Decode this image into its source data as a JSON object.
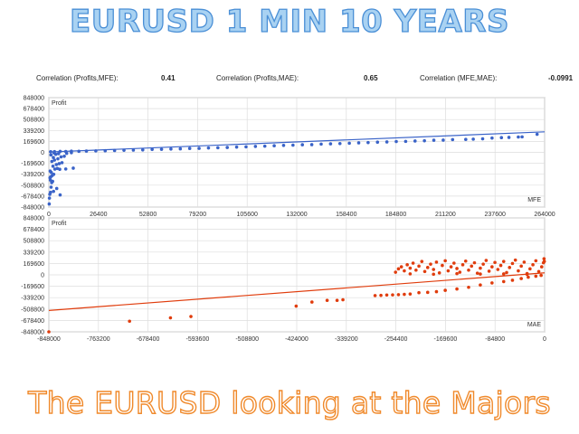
{
  "header": {
    "title": "EURUSD 1 MIN 10 YEARS"
  },
  "footer": {
    "caption": "The EURUSD looking at the Majors"
  },
  "correlations": [
    {
      "label": "Correlation (Profits,MFE):",
      "value": "0.41"
    },
    {
      "label": "Correlation (Profits,MAE):",
      "value": "0.65"
    },
    {
      "label": "Correlation (MFE,MAE):",
      "value": "-0.0991"
    }
  ],
  "colors": {
    "mfe_points": "#3a63c8",
    "mae_points": "#e03c0c",
    "grid": "#dddddd"
  },
  "chart_data": [
    {
      "type": "scatter",
      "title": "",
      "ylabel": "Profit",
      "xlabel": "MFE",
      "xlim": [
        0,
        264000
      ],
      "ylim": [
        -848000,
        848000
      ],
      "xticks": [
        "0",
        "26400",
        "52800",
        "79200",
        "105600",
        "132000",
        "158400",
        "184800",
        "211200",
        "237600",
        "264000"
      ],
      "yticks": [
        "848000",
        "678400",
        "508800",
        "339200",
        "169600",
        "0",
        "-169600",
        "-339200",
        "-508800",
        "-678400",
        "-848000"
      ],
      "grid": true,
      "trendline": {
        "x": [
          0,
          264000
        ],
        "y": [
          5000,
          318000
        ]
      },
      "points": [
        [
          200,
          -800000
        ],
        [
          300,
          -710000
        ],
        [
          500,
          -650000
        ],
        [
          900,
          -620000
        ],
        [
          2500,
          -605000
        ],
        [
          4200,
          -560000
        ],
        [
          6000,
          -660000
        ],
        [
          1200,
          -540000
        ],
        [
          800,
          -430000
        ],
        [
          1500,
          -470000
        ],
        [
          2000,
          -450000
        ],
        [
          600,
          -395000
        ],
        [
          1000,
          -380000
        ],
        [
          1800,
          -360000
        ],
        [
          2600,
          -340000
        ],
        [
          1300,
          -310000
        ],
        [
          700,
          -290000
        ],
        [
          3200,
          -260000
        ],
        [
          4500,
          -250000
        ],
        [
          5800,
          -262000
        ],
        [
          9000,
          -258000
        ],
        [
          13000,
          -245000
        ],
        [
          2200,
          -215000
        ],
        [
          4000,
          -190000
        ],
        [
          5500,
          -175000
        ],
        [
          7000,
          -160000
        ],
        [
          1600,
          -140000
        ],
        [
          3000,
          -120000
        ],
        [
          4800,
          -100000
        ],
        [
          2400,
          -80000
        ],
        [
          6500,
          -70000
        ],
        [
          8200,
          -60000
        ],
        [
          1100,
          -40000
        ],
        [
          3700,
          -30000
        ],
        [
          5200,
          -20000
        ],
        [
          9500,
          -15000
        ],
        [
          2800,
          -10000
        ],
        [
          12000,
          -5000
        ],
        [
          1000,
          10000
        ],
        [
          3000,
          12000
        ],
        [
          6000,
          15000
        ],
        [
          9000,
          14000
        ],
        [
          12000,
          18000
        ],
        [
          16000,
          16000
        ],
        [
          20000,
          20000
        ],
        [
          25000,
          22000
        ],
        [
          30000,
          25000
        ],
        [
          35000,
          28000
        ],
        [
          40000,
          33000
        ],
        [
          45000,
          35000
        ],
        [
          50000,
          38000
        ],
        [
          55000,
          45000
        ],
        [
          60000,
          47000
        ],
        [
          65000,
          52000
        ],
        [
          70000,
          55000
        ],
        [
          75000,
          60000
        ],
        [
          80000,
          62000
        ],
        [
          85000,
          68000
        ],
        [
          90000,
          72000
        ],
        [
          95000,
          76000
        ],
        [
          100000,
          82000
        ],
        [
          105000,
          86000
        ],
        [
          110000,
          92000
        ],
        [
          115000,
          96000
        ],
        [
          120000,
          102000
        ],
        [
          125000,
          108000
        ],
        [
          130000,
          112000
        ],
        [
          135000,
          118000
        ],
        [
          140000,
          120000
        ],
        [
          145000,
          128000
        ],
        [
          150000,
          132000
        ],
        [
          155000,
          136000
        ],
        [
          160000,
          142000
        ],
        [
          165000,
          148000
        ],
        [
          170000,
          152000
        ],
        [
          175000,
          158000
        ],
        [
          180000,
          162000
        ],
        [
          185000,
          168000
        ],
        [
          190000,
          170000
        ],
        [
          195000,
          176000
        ],
        [
          200000,
          180000
        ],
        [
          205000,
          188000
        ],
        [
          210000,
          190000
        ],
        [
          215000,
          198000
        ],
        [
          222000,
          200000
        ],
        [
          226000,
          205000
        ],
        [
          231000,
          210000
        ],
        [
          236000,
          222000
        ],
        [
          241000,
          228000
        ],
        [
          245000,
          232000
        ],
        [
          250000,
          238000
        ],
        [
          252000,
          240000
        ],
        [
          260000,
          280000
        ]
      ]
    },
    {
      "type": "scatter",
      "title": "",
      "ylabel": "Profit",
      "xlabel": "MAE",
      "xlim": [
        -848000,
        0
      ],
      "ylim": [
        -848000,
        848000
      ],
      "xticks": [
        "-848000",
        "-763200",
        "-678400",
        "-593600",
        "-508800",
        "-424000",
        "-339200",
        "-254400",
        "-169600",
        "-84800",
        "0"
      ],
      "yticks": [
        "848000",
        "678400",
        "508800",
        "339200",
        "169600",
        "0",
        "-169600",
        "-339200",
        "-508800",
        "-678400",
        "-848000"
      ],
      "grid": true,
      "trendline": {
        "x": [
          -848000,
          0
        ],
        "y": [
          -530000,
          30000
        ]
      },
      "points": [
        [
          -848000,
          -848000
        ],
        [
          -710000,
          -690000
        ],
        [
          -640000,
          -640000
        ],
        [
          -605000,
          -620000
        ],
        [
          -425000,
          -465000
        ],
        [
          -398000,
          -405000
        ],
        [
          -372000,
          -380000
        ],
        [
          -355000,
          -380000
        ],
        [
          -345000,
          -370000
        ],
        [
          -290000,
          -308000
        ],
        [
          -280000,
          -305000
        ],
        [
          -270000,
          -300000
        ],
        [
          -260000,
          -298000
        ],
        [
          -250000,
          -295000
        ],
        [
          -240000,
          -290000
        ],
        [
          -230000,
          -285000
        ],
        [
          -215000,
          -265000
        ],
        [
          -200000,
          -260000
        ],
        [
          -185000,
          -250000
        ],
        [
          -170000,
          -230000
        ],
        [
          -150000,
          -210000
        ],
        [
          -130000,
          -185000
        ],
        [
          -110000,
          -150000
        ],
        [
          -90000,
          -120000
        ],
        [
          -70000,
          -100000
        ],
        [
          -55000,
          -80000
        ],
        [
          -40000,
          -55000
        ],
        [
          -28000,
          -35000
        ],
        [
          -15000,
          -20000
        ],
        [
          -6000,
          -8000
        ],
        [
          -255000,
          40000
        ],
        [
          -250000,
          90000
        ],
        [
          -245000,
          120000
        ],
        [
          -240000,
          60000
        ],
        [
          -235000,
          150000
        ],
        [
          -230000,
          100000
        ],
        [
          -225000,
          175000
        ],
        [
          -220000,
          70000
        ],
        [
          -215000,
          130000
        ],
        [
          -210000,
          200000
        ],
        [
          -205000,
          50000
        ],
        [
          -200000,
          110000
        ],
        [
          -195000,
          160000
        ],
        [
          -190000,
          80000
        ],
        [
          -185000,
          190000
        ],
        [
          -180000,
          30000
        ],
        [
          -175000,
          140000
        ],
        [
          -170000,
          210000
        ],
        [
          -165000,
          60000
        ],
        [
          -160000,
          120000
        ],
        [
          -155000,
          175000
        ],
        [
          -150000,
          95000
        ],
        [
          -145000,
          40000
        ],
        [
          -140000,
          150000
        ],
        [
          -135000,
          205000
        ],
        [
          -130000,
          70000
        ],
        [
          -125000,
          130000
        ],
        [
          -120000,
          180000
        ],
        [
          -115000,
          25000
        ],
        [
          -110000,
          100000
        ],
        [
          -105000,
          160000
        ],
        [
          -100000,
          215000
        ],
        [
          -95000,
          55000
        ],
        [
          -90000,
          120000
        ],
        [
          -85000,
          185000
        ],
        [
          -80000,
          80000
        ],
        [
          -75000,
          140000
        ],
        [
          -70000,
          200000
        ],
        [
          -65000,
          35000
        ],
        [
          -60000,
          110000
        ],
        [
          -55000,
          170000
        ],
        [
          -50000,
          220000
        ],
        [
          -45000,
          60000
        ],
        [
          -40000,
          130000
        ],
        [
          -35000,
          190000
        ],
        [
          -30000,
          20000
        ],
        [
          -25000,
          90000
        ],
        [
          -20000,
          150000
        ],
        [
          -15000,
          210000
        ],
        [
          -10000,
          50000
        ],
        [
          -5000,
          120000
        ],
        [
          -2000,
          180000
        ],
        [
          -1000,
          240000
        ],
        [
          -500,
          200000
        ],
        [
          -230000,
          15000
        ],
        [
          -190000,
          10000
        ],
        [
          -150000,
          18000
        ],
        [
          -110000,
          12000
        ],
        [
          -70000,
          14000
        ],
        [
          -30000,
          8000
        ]
      ]
    }
  ]
}
